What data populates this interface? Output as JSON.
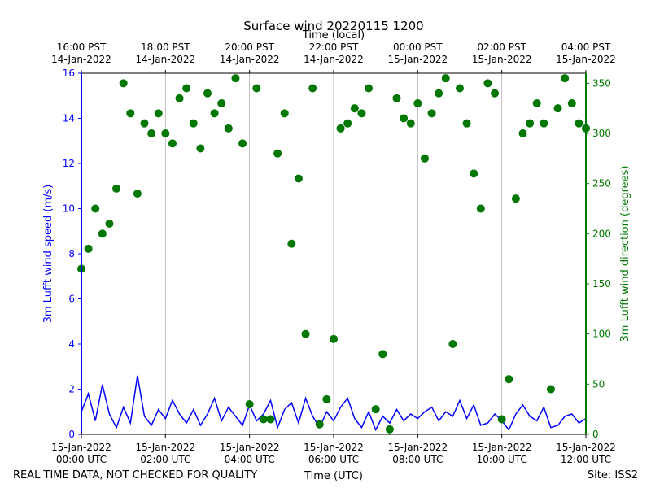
{
  "chart_data": {
    "type": "line",
    "title": "Surface wind 20220115 1200",
    "x2label": "Time (local)",
    "xlabel": "Time (UTC)",
    "ylabel": "3m Lufft wind speed (m/s)",
    "y2label": "3m Lufft wind direction (degrees)",
    "footer_left": "REAL TIME DATA, NOT CHECKED FOR QUALITY",
    "footer_right": "Site: ISS2",
    "grid": "x",
    "xlim": [
      "2022-01-15T00:00",
      "2022-01-15T12:00"
    ],
    "xticks": [
      {
        "value": "2022-01-15T00:00",
        "label": "15-Jan-2022\n00:00 UTC"
      },
      {
        "value": "2022-01-15T02:00",
        "label": "15-Jan-2022\n02:00 UTC"
      },
      {
        "value": "2022-01-15T04:00",
        "label": "15-Jan-2022\n04:00 UTC"
      },
      {
        "value": "2022-01-15T06:00",
        "label": "15-Jan-2022\n06:00 UTC"
      },
      {
        "value": "2022-01-15T08:00",
        "label": "15-Jan-2022\n08:00 UTC"
      },
      {
        "value": "2022-01-15T10:00",
        "label": "15-Jan-2022\n10:00 UTC"
      },
      {
        "value": "2022-01-15T12:00",
        "label": "15-Jan-2022\n12:00 UTC"
      }
    ],
    "x2ticks": [
      {
        "value": "2022-01-15T00:00",
        "label": "16:00 PST\n14-Jan-2022"
      },
      {
        "value": "2022-01-15T02:00",
        "label": "18:00 PST\n14-Jan-2022"
      },
      {
        "value": "2022-01-15T04:00",
        "label": "20:00 PST\n14-Jan-2022"
      },
      {
        "value": "2022-01-15T06:00",
        "label": "22:00 PST\n14-Jan-2022"
      },
      {
        "value": "2022-01-15T08:00",
        "label": "00:00 PST\n15-Jan-2022"
      },
      {
        "value": "2022-01-15T10:00",
        "label": "02:00 PST\n15-Jan-2022"
      },
      {
        "value": "2022-01-15T12:00",
        "label": "04:00 PST\n15-Jan-2022"
      }
    ],
    "ylim": [
      0,
      16
    ],
    "yticks": [
      0,
      2,
      4,
      6,
      8,
      10,
      12,
      14,
      16
    ],
    "y2lim": [
      0,
      360
    ],
    "y2ticks": [
      0,
      50,
      100,
      150,
      200,
      250,
      300,
      350
    ],
    "x": [
      "2022-01-15T00:00",
      "2022-01-15T00:10",
      "2022-01-15T00:20",
      "2022-01-15T00:30",
      "2022-01-15T00:40",
      "2022-01-15T00:50",
      "2022-01-15T01:00",
      "2022-01-15T01:10",
      "2022-01-15T01:20",
      "2022-01-15T01:30",
      "2022-01-15T01:40",
      "2022-01-15T01:50",
      "2022-01-15T02:00",
      "2022-01-15T02:10",
      "2022-01-15T02:20",
      "2022-01-15T02:30",
      "2022-01-15T02:40",
      "2022-01-15T02:50",
      "2022-01-15T03:00",
      "2022-01-15T03:10",
      "2022-01-15T03:20",
      "2022-01-15T03:30",
      "2022-01-15T03:40",
      "2022-01-15T03:50",
      "2022-01-15T04:00",
      "2022-01-15T04:10",
      "2022-01-15T04:20",
      "2022-01-15T04:30",
      "2022-01-15T04:40",
      "2022-01-15T04:50",
      "2022-01-15T05:00",
      "2022-01-15T05:10",
      "2022-01-15T05:20",
      "2022-01-15T05:30",
      "2022-01-15T05:40",
      "2022-01-15T05:50",
      "2022-01-15T06:00",
      "2022-01-15T06:10",
      "2022-01-15T06:20",
      "2022-01-15T06:30",
      "2022-01-15T06:40",
      "2022-01-15T06:50",
      "2022-01-15T07:00",
      "2022-01-15T07:10",
      "2022-01-15T07:20",
      "2022-01-15T07:30",
      "2022-01-15T07:40",
      "2022-01-15T07:50",
      "2022-01-15T08:00",
      "2022-01-15T08:10",
      "2022-01-15T08:20",
      "2022-01-15T08:30",
      "2022-01-15T08:40",
      "2022-01-15T08:50",
      "2022-01-15T09:00",
      "2022-01-15T09:10",
      "2022-01-15T09:20",
      "2022-01-15T09:30",
      "2022-01-15T09:40",
      "2022-01-15T09:50",
      "2022-01-15T10:00",
      "2022-01-15T10:10",
      "2022-01-15T10:20",
      "2022-01-15T10:30",
      "2022-01-15T10:40",
      "2022-01-15T10:50",
      "2022-01-15T11:00",
      "2022-01-15T11:10",
      "2022-01-15T11:20",
      "2022-01-15T11:30",
      "2022-01-15T11:40",
      "2022-01-15T11:50",
      "2022-01-15T12:00"
    ],
    "series": [
      {
        "name": "3m Lufft wind speed",
        "color": "#0000ff",
        "mode": "line",
        "values": [
          1.0,
          1.8,
          0.6,
          2.2,
          0.9,
          0.3,
          1.2,
          0.5,
          2.6,
          0.8,
          0.4,
          1.1,
          0.7,
          1.5,
          0.9,
          0.5,
          1.1,
          0.4,
          0.9,
          1.6,
          0.6,
          1.2,
          0.8,
          0.4,
          1.3,
          0.6,
          0.9,
          1.5,
          0.3,
          1.1,
          1.4,
          0.5,
          1.6,
          0.8,
          0.3,
          1.0,
          0.6,
          1.2,
          1.6,
          0.7,
          0.3,
          1.0,
          0.2,
          0.8,
          0.5,
          1.1,
          0.6,
          0.9,
          0.7,
          1.0,
          1.2,
          0.6,
          1.0,
          0.8,
          1.5,
          0.7,
          1.3,
          0.4,
          0.5,
          0.9,
          0.6,
          0.2,
          0.9,
          1.3,
          0.8,
          0.6,
          1.2,
          0.3,
          0.4,
          0.8,
          0.9,
          0.5,
          0.7
        ]
      },
      {
        "name": "3m Lufft wind direction",
        "color": "#007700",
        "mode": "markers",
        "axis": "y2",
        "values": [
          165,
          185,
          225,
          200,
          210,
          245,
          350,
          320,
          240,
          310,
          300,
          320,
          300,
          290,
          335,
          345,
          310,
          285,
          340,
          320,
          330,
          305,
          355,
          290,
          30,
          345,
          15,
          15,
          280,
          320,
          190,
          255,
          100,
          345,
          10,
          35,
          95,
          305,
          310,
          325,
          320,
          345,
          25,
          80,
          5,
          335,
          315,
          310,
          330,
          275,
          320,
          340,
          355,
          90,
          345,
          310,
          260,
          225,
          350,
          340,
          15,
          55,
          235,
          300,
          310,
          330,
          310,
          45,
          325,
          355,
          330,
          310,
          305
        ]
      }
    ]
  }
}
